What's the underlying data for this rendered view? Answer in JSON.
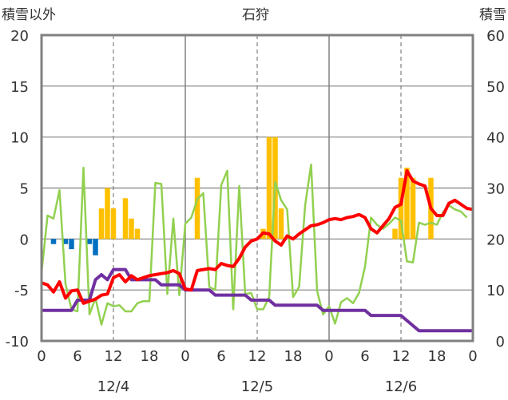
{
  "chart_data": {
    "type": "line",
    "title": "石狩",
    "left_axis_label": "積雪以外",
    "right_axis_label": "積雪",
    "left_ylim": [
      -10,
      20
    ],
    "left_ticks": [
      "20",
      "15",
      "10",
      "5",
      "0",
      "-5",
      "-10"
    ],
    "right_ylim": [
      0,
      60
    ],
    "right_ticks": [
      "60",
      "50",
      "40",
      "30",
      "20",
      "10",
      "0"
    ],
    "x_hours": [
      0,
      72
    ],
    "x_tick_labels": [
      "0",
      "6",
      "12",
      "18",
      "0",
      "6",
      "12",
      "18",
      "0",
      "6",
      "12",
      "18",
      "0"
    ],
    "date_labels": [
      "12/4",
      "12/5",
      "12/6"
    ],
    "grid": true,
    "series": [
      {
        "color": "#ff0000",
        "axis": "left",
        "points": [
          [
            0,
            -4.3
          ],
          [
            1,
            -4.5
          ],
          [
            2,
            -5.2
          ],
          [
            3,
            -4.2
          ],
          [
            4,
            -5.8
          ],
          [
            5,
            -5.1
          ],
          [
            6,
            -5
          ],
          [
            7,
            -6.3
          ],
          [
            8,
            -6.1
          ],
          [
            9,
            -5.9
          ],
          [
            10,
            -5.5
          ],
          [
            11,
            -5.4
          ],
          [
            12,
            -3.8
          ],
          [
            13,
            -3.5
          ],
          [
            14,
            -4.2
          ],
          [
            15,
            -3.6
          ],
          [
            16,
            -4
          ],
          [
            17,
            -3.8
          ],
          [
            18,
            -3.6
          ],
          [
            19,
            -3.5
          ],
          [
            20,
            -3.4
          ],
          [
            21,
            -3.3
          ],
          [
            22,
            -3.1
          ],
          [
            23,
            -3.4
          ],
          [
            24,
            -4.9
          ],
          [
            25,
            -5
          ],
          [
            26,
            -3.1
          ],
          [
            27,
            -3
          ],
          [
            28,
            -2.9
          ],
          [
            29,
            -3
          ],
          [
            30,
            -2.4
          ],
          [
            31,
            -2.6
          ],
          [
            32,
            -2.7
          ],
          [
            33,
            -1.9
          ],
          [
            34,
            -0.8
          ],
          [
            35,
            -0.2
          ],
          [
            36,
            0
          ],
          [
            37,
            0.6
          ],
          [
            38,
            0.5
          ],
          [
            39,
            -0.2
          ],
          [
            40,
            -0.6
          ],
          [
            41,
            0.3
          ],
          [
            42,
            0
          ],
          [
            43,
            0.5
          ],
          [
            44,
            0.9
          ],
          [
            45,
            1.3
          ],
          [
            46,
            1.4
          ],
          [
            47,
            1.6
          ],
          [
            48,
            1.9
          ],
          [
            49,
            2
          ],
          [
            50,
            1.9
          ],
          [
            51,
            2.1
          ],
          [
            52,
            2.2
          ],
          [
            53,
            2.4
          ],
          [
            54,
            2.1
          ],
          [
            55,
            1
          ],
          [
            56,
            0.6
          ],
          [
            57,
            1.3
          ],
          [
            58,
            2
          ],
          [
            59,
            3.1
          ],
          [
            60,
            3.4
          ],
          [
            61,
            6.7
          ],
          [
            62,
            5.7
          ],
          [
            63,
            5.4
          ],
          [
            64,
            5.2
          ],
          [
            65,
            3
          ],
          [
            66,
            2.3
          ],
          [
            67,
            2.3
          ],
          [
            68,
            3.5
          ],
          [
            69,
            3.8
          ],
          [
            70,
            3.4
          ],
          [
            71,
            3
          ],
          [
            72,
            2.9
          ]
        ]
      },
      {
        "color": "#92d050",
        "axis": "left",
        "points": [
          [
            0,
            -3.3
          ],
          [
            1,
            2.3
          ],
          [
            2,
            2
          ],
          [
            3,
            4.8
          ],
          [
            4,
            -4.4
          ],
          [
            5,
            -6.9
          ],
          [
            6,
            -7.1
          ],
          [
            7,
            7
          ],
          [
            8,
            -7.4
          ],
          [
            9,
            -5.8
          ],
          [
            10,
            -8.4
          ],
          [
            11,
            -6.3
          ],
          [
            12,
            -6.6
          ],
          [
            13,
            -6.5
          ],
          [
            14,
            -7.1
          ],
          [
            15,
            -7.1
          ],
          [
            16,
            -6.3
          ],
          [
            17,
            -6.1
          ],
          [
            18,
            -6.1
          ],
          [
            19,
            5.5
          ],
          [
            20,
            5.4
          ],
          [
            21,
            -5.4
          ],
          [
            22,
            2
          ],
          [
            23,
            -5.5
          ],
          [
            24,
            1.5
          ],
          [
            25,
            2.1
          ],
          [
            26,
            3.9
          ],
          [
            27,
            4.5
          ],
          [
            28,
            -4.7
          ],
          [
            29,
            -5
          ],
          [
            30,
            5.3
          ],
          [
            31,
            6.7
          ],
          [
            32,
            -6.9
          ],
          [
            33,
            5.2
          ],
          [
            34,
            -5.4
          ],
          [
            35,
            -5.3
          ],
          [
            36,
            -6.9
          ],
          [
            37,
            -6.9
          ],
          [
            38,
            -5.7
          ],
          [
            39,
            5.6
          ],
          [
            40,
            3.8
          ],
          [
            41,
            2.9
          ],
          [
            42,
            -5.7
          ],
          [
            43,
            -4.7
          ],
          [
            44,
            3.3
          ],
          [
            45,
            7.3
          ],
          [
            46,
            -5.1
          ],
          [
            47,
            -7.4
          ],
          [
            48,
            -6.6
          ],
          [
            49,
            -8.3
          ],
          [
            50,
            -6.2
          ],
          [
            51,
            -5.8
          ],
          [
            52,
            -6.3
          ],
          [
            53,
            -5.3
          ],
          [
            54,
            -2.7
          ],
          [
            55,
            2.1
          ],
          [
            56,
            1.4
          ],
          [
            57,
            1
          ],
          [
            58,
            1.5
          ],
          [
            59,
            2.1
          ],
          [
            60,
            1.8
          ],
          [
            61,
            -2.2
          ],
          [
            62,
            -2.3
          ],
          [
            63,
            1.6
          ],
          [
            64,
            1.4
          ],
          [
            65,
            1.6
          ],
          [
            66,
            1.4
          ],
          [
            67,
            2.6
          ],
          [
            68,
            3.3
          ],
          [
            69,
            2.9
          ],
          [
            70,
            2.7
          ],
          [
            71,
            2.1
          ]
        ]
      },
      {
        "color": "#7030a0",
        "axis": "right",
        "points": [
          [
            0,
            6
          ],
          [
            1,
            6
          ],
          [
            2,
            6
          ],
          [
            3,
            6
          ],
          [
            4,
            6
          ],
          [
            5,
            6
          ],
          [
            6,
            8
          ],
          [
            7,
            8
          ],
          [
            8,
            8
          ],
          [
            9,
            12
          ],
          [
            10,
            13
          ],
          [
            11,
            12
          ],
          [
            12,
            14
          ],
          [
            13,
            14
          ],
          [
            14,
            14
          ],
          [
            15,
            12
          ],
          [
            16,
            12
          ],
          [
            17,
            12
          ],
          [
            18,
            12
          ],
          [
            19,
            12
          ],
          [
            20,
            11
          ],
          [
            21,
            11
          ],
          [
            22,
            11
          ],
          [
            23,
            11
          ],
          [
            24,
            10
          ],
          [
            25,
            10
          ],
          [
            26,
            10
          ],
          [
            27,
            10
          ],
          [
            28,
            10
          ],
          [
            29,
            9
          ],
          [
            30,
            9
          ],
          [
            31,
            9
          ],
          [
            32,
            9
          ],
          [
            33,
            9
          ],
          [
            34,
            9
          ],
          [
            35,
            8
          ],
          [
            36,
            8
          ],
          [
            37,
            8
          ],
          [
            38,
            8
          ],
          [
            39,
            7
          ],
          [
            40,
            7
          ],
          [
            41,
            7
          ],
          [
            42,
            7
          ],
          [
            43,
            7
          ],
          [
            44,
            7
          ],
          [
            45,
            7
          ],
          [
            46,
            7
          ],
          [
            47,
            6
          ],
          [
            48,
            6
          ],
          [
            49,
            6
          ],
          [
            50,
            6
          ],
          [
            51,
            6
          ],
          [
            52,
            6
          ],
          [
            53,
            6
          ],
          [
            54,
            6
          ],
          [
            55,
            5
          ],
          [
            56,
            5
          ],
          [
            57,
            5
          ],
          [
            58,
            5
          ],
          [
            59,
            5
          ],
          [
            60,
            5
          ],
          [
            61,
            4
          ],
          [
            62,
            3
          ],
          [
            63,
            2
          ],
          [
            64,
            2
          ],
          [
            65,
            2
          ],
          [
            66,
            2
          ],
          [
            67,
            2
          ],
          [
            68,
            2
          ],
          [
            69,
            2
          ],
          [
            70,
            2
          ],
          [
            71,
            2
          ],
          [
            72,
            2
          ]
        ]
      }
    ],
    "bars": [
      {
        "color": "#ffc000",
        "axis": "left",
        "values": [
          [
            10,
            3
          ],
          [
            11,
            5
          ],
          [
            12,
            3
          ],
          [
            14,
            4
          ],
          [
            15,
            2
          ],
          [
            16,
            1
          ],
          [
            26,
            6
          ],
          [
            37,
            1
          ],
          [
            38,
            10
          ],
          [
            39,
            10
          ],
          [
            40,
            3
          ],
          [
            59,
            1
          ],
          [
            60,
            6
          ],
          [
            61,
            7
          ],
          [
            62,
            6
          ],
          [
            65,
            6
          ]
        ]
      },
      {
        "color": "#0070c0",
        "axis": "left",
        "values": [
          [
            2,
            -0.5
          ],
          [
            4,
            -0.5
          ],
          [
            5,
            -1
          ],
          [
            8,
            -0.5
          ],
          [
            9,
            -1.6
          ]
        ]
      }
    ]
  }
}
